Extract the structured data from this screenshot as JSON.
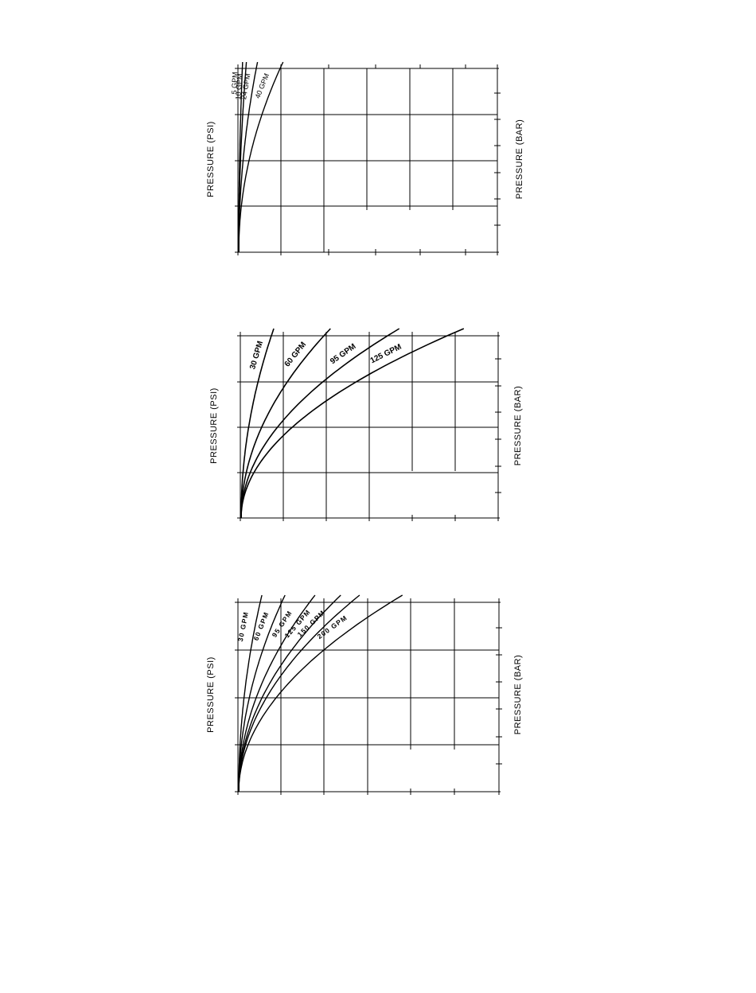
{
  "chart_data": [
    {
      "type": "line",
      "y_unit_left": "PRESSURE (PSI)",
      "y_unit_right": "PRESSURE (BAR)",
      "curve_label_style": "small",
      "series": [
        {
          "label": "5 GPM",
          "k": 0.0045
        },
        {
          "label": "10 GPM",
          "k": 0.009
        },
        {
          "label": "24 GPM",
          "k": 0.022
        },
        {
          "label": "40 GPM",
          "k": 0.052
        }
      ]
    },
    {
      "type": "line",
      "y_unit_left": "PRESSURE (PSI)",
      "y_unit_right": "PRESSURE (BAR)",
      "curve_label_style": "bold",
      "series": [
        {
          "label": "30 GPM",
          "k": 0.038
        },
        {
          "label": "60 GPM",
          "k": 0.104
        },
        {
          "label": "95 GPM",
          "k": 0.184
        },
        {
          "label": "125 GPM",
          "k": 0.259
        }
      ]
    },
    {
      "type": "line",
      "y_unit_left": "PRESSURE  (PSI)",
      "y_unit_right": "PRESSURE (BAR)",
      "curve_label_style": "spaced",
      "series": [
        {
          "label": "30 GPM",
          "k": 0.027
        },
        {
          "label": "60 GPM",
          "k": 0.054
        },
        {
          "label": "95 GPM",
          "k": 0.089
        },
        {
          "label": "125 GPM",
          "k": 0.119
        },
        {
          "label": "150 GPM",
          "k": 0.141
        },
        {
          "label": "200 GPM",
          "k": 0.191
        }
      ]
    }
  ]
}
